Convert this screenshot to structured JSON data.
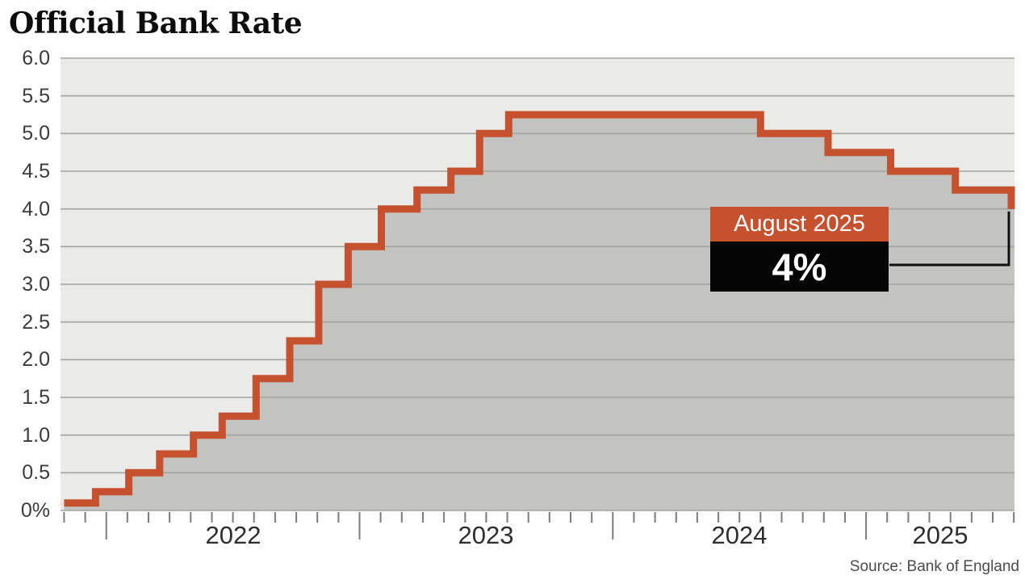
{
  "title": "Official Bank Rate",
  "source": "Source: Bank of England",
  "annotation": {
    "label": "August 2025",
    "value": "4%"
  },
  "colors": {
    "line": "#c6512e",
    "area_fill": "#c3c3c1",
    "plot_bg": "#eaeae8",
    "gridline": "#a3a3a1",
    "tick": "#7c7c7a",
    "connector": "#111111",
    "annotation_label_bg": "#c6512e",
    "annotation_value_bg": "#050505",
    "annotation_text": "#ffffff",
    "title_text": "#0d0d0d",
    "axis_text": "#3c3c3a",
    "source_text": "#4c4c4a"
  },
  "chart_data": {
    "type": "area",
    "subtype": "step",
    "title": "Official Bank Rate",
    "xlabel": "",
    "ylabel": "",
    "ylim": [
      0,
      6
    ],
    "ytick_step": 0.5,
    "ytick_labels_top_to_bottom": [
      "6.0",
      "5.5",
      "5.0",
      "4.5",
      "4.0",
      "3.5",
      "3.0",
      "2.5",
      "2.0",
      "1.5",
      "1.0",
      "0.5",
      "0%"
    ],
    "x_domain": [
      "2021-11-01",
      "2025-08-02"
    ],
    "year_tick_labels": [
      "2022",
      "2023",
      "2024",
      "2025"
    ],
    "grid": true,
    "legend": "none",
    "series": [
      {
        "name": "Official Bank Rate (%)",
        "step_points": [
          {
            "date": "2021-11-01",
            "rate": 0.1
          },
          {
            "date": "2021-12-16",
            "rate": 0.25
          },
          {
            "date": "2022-02-03",
            "rate": 0.5
          },
          {
            "date": "2022-03-17",
            "rate": 0.75
          },
          {
            "date": "2022-05-05",
            "rate": 1.0
          },
          {
            "date": "2022-06-16",
            "rate": 1.25
          },
          {
            "date": "2022-08-04",
            "rate": 1.75
          },
          {
            "date": "2022-09-22",
            "rate": 2.25
          },
          {
            "date": "2022-11-03",
            "rate": 3.0
          },
          {
            "date": "2022-12-15",
            "rate": 3.5
          },
          {
            "date": "2023-02-02",
            "rate": 4.0
          },
          {
            "date": "2023-03-23",
            "rate": 4.25
          },
          {
            "date": "2023-05-11",
            "rate": 4.5
          },
          {
            "date": "2023-06-22",
            "rate": 5.0
          },
          {
            "date": "2023-08-03",
            "rate": 5.25
          },
          {
            "date": "2024-08-01",
            "rate": 5.0
          },
          {
            "date": "2024-11-07",
            "rate": 4.75
          },
          {
            "date": "2025-02-06",
            "rate": 4.5
          },
          {
            "date": "2025-05-08",
            "rate": 4.25
          },
          {
            "date": "2025-08-07",
            "rate": 4.0
          }
        ]
      }
    ],
    "annotations": [
      {
        "label": "August 2025",
        "value": "4%",
        "points_to": {
          "date": "2025-08-07",
          "rate": 4.0
        }
      }
    ]
  }
}
